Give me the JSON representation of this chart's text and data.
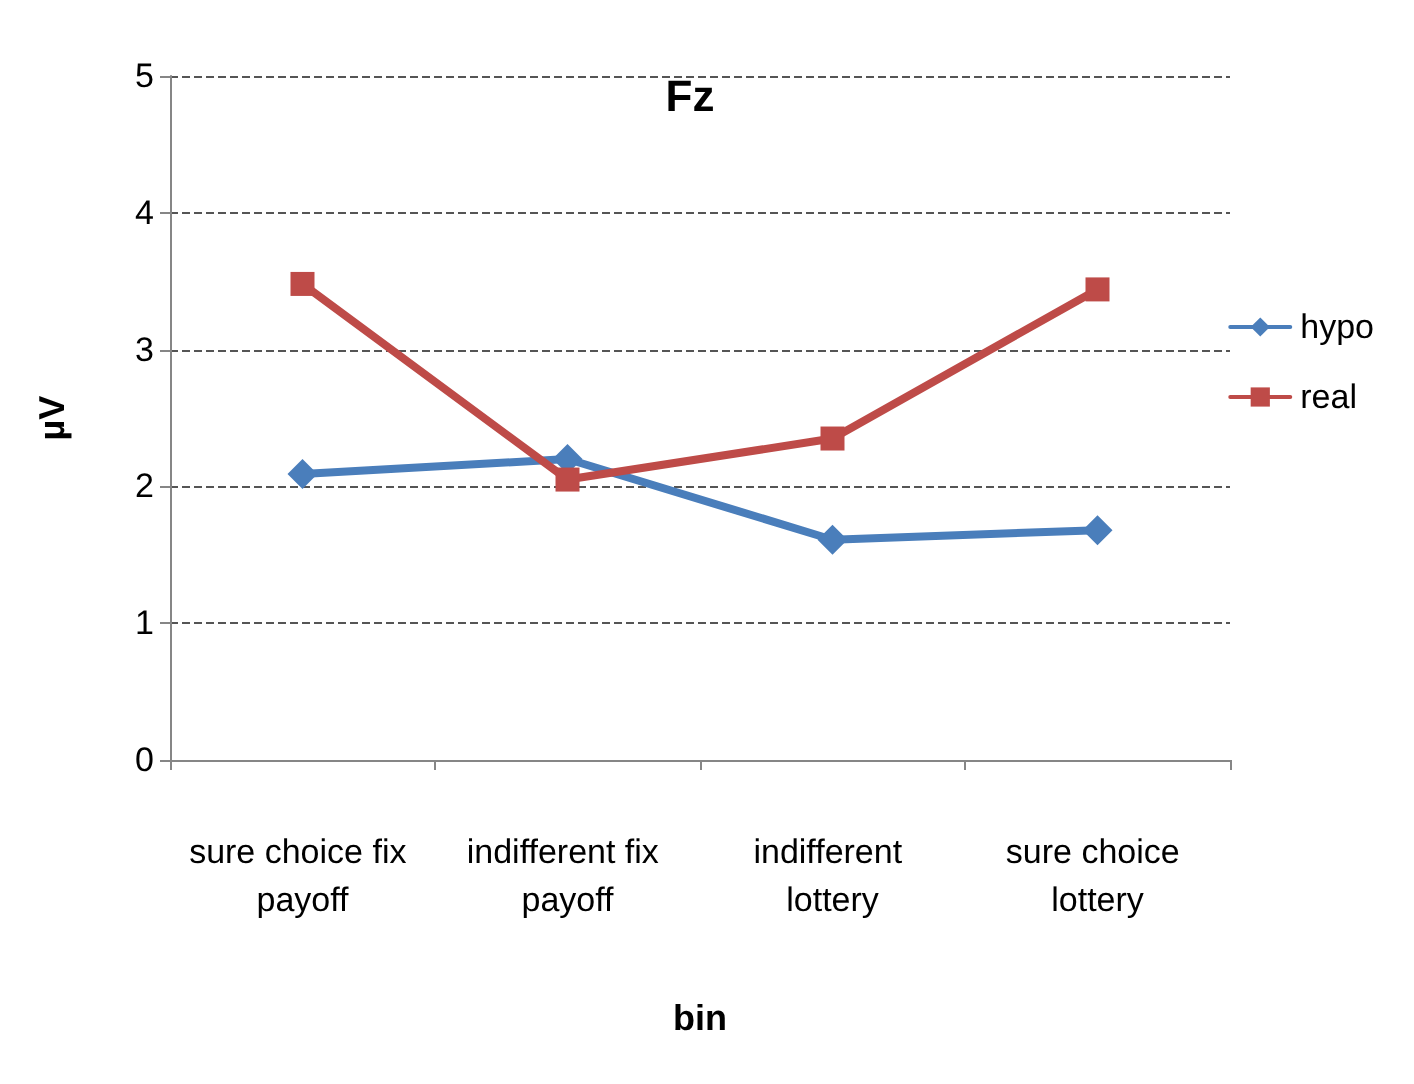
{
  "chart_data": {
    "type": "line",
    "title": "Fz",
    "xlabel": "bin",
    "ylabel": "µV",
    "categories": [
      "sure choice fix payoff",
      "indifferent fix payoff",
      "indifferent lottery",
      "sure choice lottery"
    ],
    "series": [
      {
        "name": "hypo",
        "color": "#4a7ebb",
        "marker": "diamond",
        "values": [
          2.09,
          2.2,
          1.61,
          1.68
        ]
      },
      {
        "name": "real",
        "color": "#be4b48",
        "marker": "square",
        "values": [
          3.48,
          2.05,
          2.35,
          3.44
        ]
      }
    ],
    "ylim": [
      0,
      5
    ],
    "yticks": [
      0,
      1,
      2,
      3,
      4,
      5
    ],
    "grid": "y",
    "legend": "right",
    "line_style": "solid"
  }
}
